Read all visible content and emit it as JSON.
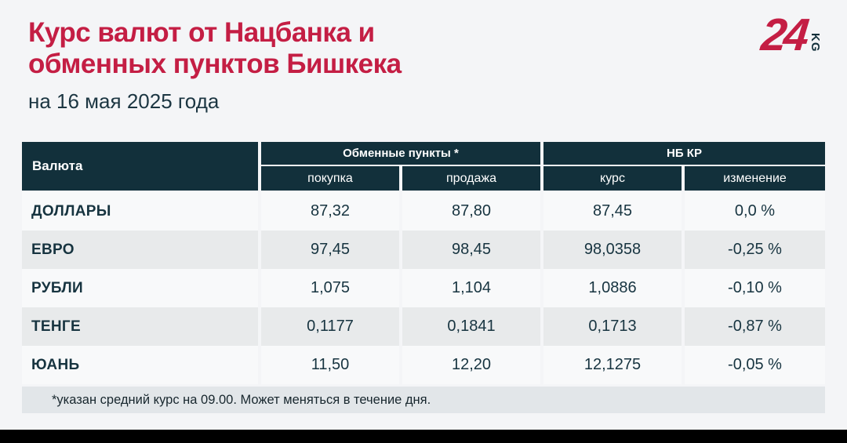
{
  "page": {
    "background": "#f4f5f7"
  },
  "header": {
    "title_line1": "Курс валют от Нацбанка и",
    "title_line2": "обменных пунктов Бишкека",
    "subtitle": "на 16 мая 2025 года"
  },
  "logo": {
    "number": "24",
    "suffix": "KG"
  },
  "table": {
    "currency_header": "Валюта",
    "groups": [
      {
        "label": "Обменные пункты *"
      },
      {
        "label": "НБ КР"
      }
    ],
    "subheaders": [
      "покупка",
      "продажа",
      "курс",
      "изменение"
    ],
    "rows": [
      {
        "currency": "ДОЛЛАРЫ",
        "buy": "87,32",
        "sell": "87,80",
        "rate": "87,45",
        "change": "0,0 %"
      },
      {
        "currency": "ЕВРО",
        "buy": "97,45",
        "sell": "98,45",
        "rate": "98,0358",
        "change": "-0,25 %"
      },
      {
        "currency": "РУБЛИ",
        "buy": "1,075",
        "sell": "1,104",
        "rate": "1,0886",
        "change": "-0,10 %"
      },
      {
        "currency": "ТЕНГЕ",
        "buy": "0,1177",
        "sell": "0,1841",
        "rate": "0,1713",
        "change": "-0,87 %"
      },
      {
        "currency": "ЮАНЬ",
        "buy": "11,50",
        "sell": "12,20",
        "rate": "12,1275",
        "change": "-0,05 %"
      }
    ],
    "footnote": "*указан средний курс на 09.00. Может меняться в течение дня."
  },
  "colors": {
    "accent_red": "#c41e44",
    "header_dark": "#12303b",
    "text_dark": "#173440",
    "row_light": "#f8f9fa",
    "row_gray": "#e8eaeb",
    "footnote_band": "#e2e6e9",
    "bottom_bar": "#000000"
  },
  "chart_data": {
    "type": "table",
    "title": "Курс валют от Нацбанка и обменных пунктов Бишкека",
    "subtitle": "на 16 мая 2025 года",
    "columns": [
      "Валюта",
      "Обменные пункты * — покупка",
      "Обменные пункты * — продажа",
      "НБ КР — курс",
      "НБ КР — изменение"
    ],
    "rows": [
      [
        "ДОЛЛАРЫ",
        87.32,
        87.8,
        87.45,
        "0,0 %"
      ],
      [
        "ЕВРО",
        97.45,
        98.45,
        98.0358,
        "-0,25 %"
      ],
      [
        "РУБЛИ",
        1.075,
        1.104,
        1.0886,
        "-0,10 %"
      ],
      [
        "ТЕНГЕ",
        0.1177,
        0.1841,
        0.1713,
        "-0,87 %"
      ],
      [
        "ЮАНЬ",
        11.5,
        12.2,
        12.1275,
        "-0,05 %"
      ]
    ],
    "footnote": "*указан средний курс на 09.00. Может меняться в течение дня."
  }
}
